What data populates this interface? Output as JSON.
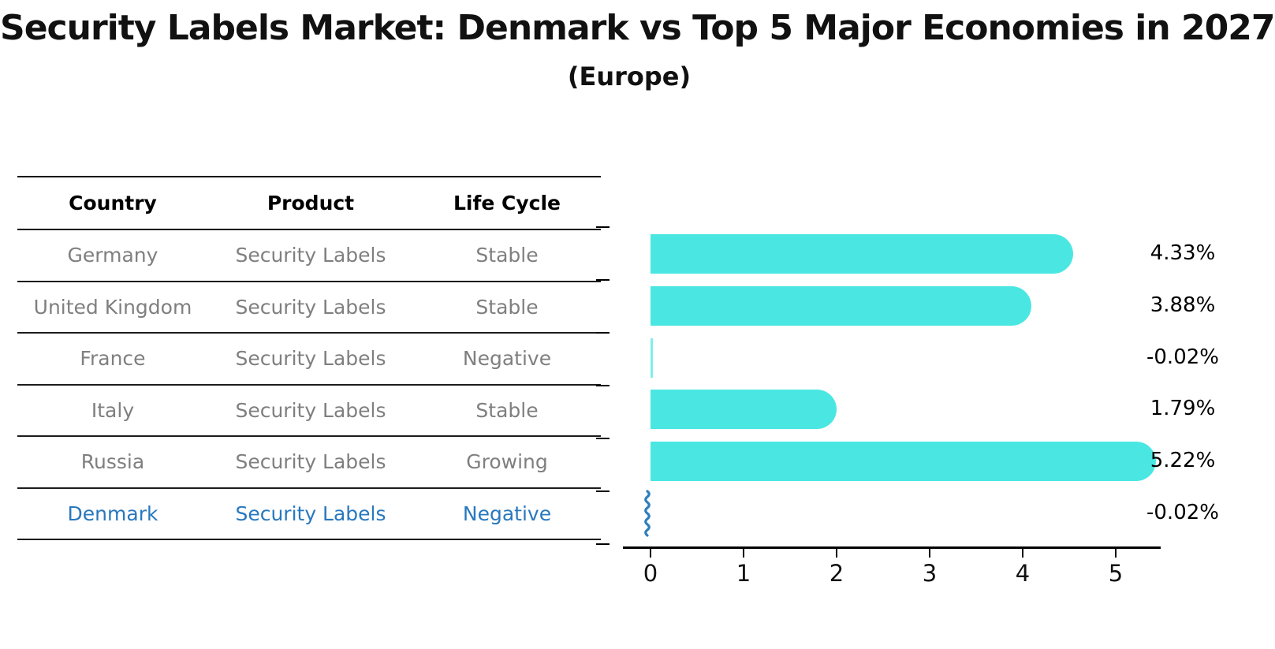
{
  "title": "Security Labels Market: Denmark vs Top 5 Major Economies in 2027",
  "subtitle": "(Europe)",
  "table": {
    "headers": [
      "Country",
      "Product",
      "Life Cycle"
    ],
    "rows": [
      {
        "country": "Germany",
        "product": "Security Labels",
        "life_cycle": "Stable",
        "highlighted": false
      },
      {
        "country": "United Kingdom",
        "product": "Security Labels",
        "life_cycle": "Stable",
        "highlighted": false
      },
      {
        "country": "France",
        "product": "Security Labels",
        "life_cycle": "Negative",
        "highlighted": false
      },
      {
        "country": "Italy",
        "product": "Security Labels",
        "life_cycle": "Stable",
        "highlighted": false
      },
      {
        "country": "Russia",
        "product": "Security Labels",
        "life_cycle": "Growing",
        "highlighted": false
      },
      {
        "country": "Denmark",
        "product": "Security Labels",
        "life_cycle": "Negative",
        "highlighted": true
      }
    ]
  },
  "chart_data": {
    "type": "bar",
    "orientation": "horizontal",
    "title": "Security Labels Market: Denmark vs Top 5 Major Economies in 2027 (Europe)",
    "categories": [
      "Germany",
      "United Kingdom",
      "France",
      "Italy",
      "Russia",
      "Denmark"
    ],
    "values": [
      4.33,
      3.88,
      -0.02,
      1.79,
      5.22,
      -0.02
    ],
    "value_labels": [
      "4.33%",
      "3.88%",
      "-0.02%",
      "1.79%",
      "5.22%",
      "-0.02%"
    ],
    "xlabel": "",
    "ylabel": "",
    "xticks": [
      0,
      1,
      2,
      3,
      4,
      5
    ],
    "xlim": [
      -0.35,
      5.5
    ],
    "grid": false,
    "legend_position": "none",
    "bar_color": "#4ae7e2",
    "highlight_color": "#2e7ebc",
    "highlight_index": 5,
    "highlight_style": "squiggle"
  },
  "colors": {
    "bar": "#4ae7e2",
    "highlight_blue": "#2878be",
    "table_text": "#7f7f7f",
    "header_text": "#000000",
    "axis": "#000000"
  }
}
